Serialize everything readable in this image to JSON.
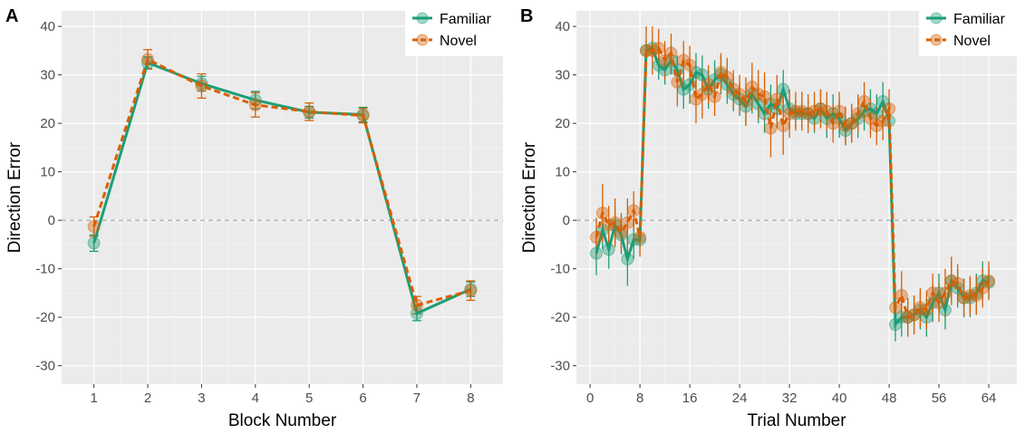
{
  "chart_data": [
    {
      "type": "line",
      "panel_label": "A",
      "x_label": "Block Number",
      "y_label": "Direction Error",
      "x": [
        1,
        2,
        3,
        4,
        5,
        6,
        7,
        8
      ],
      "xlim": [
        0.4,
        8.6
      ],
      "xticks": [
        1,
        2,
        3,
        4,
        5,
        6,
        7,
        8
      ],
      "ylim": [
        -33.8,
        43.2
      ],
      "yticks": [
        -30,
        -20,
        -10,
        0,
        10,
        20,
        30,
        40
      ],
      "grid": true,
      "hline": 0,
      "legend": "top-right",
      "error_caps": true,
      "series": [
        {
          "name": "Familiar",
          "color": "#1b9e77",
          "dash": false,
          "values": [
            -4.7,
            32.5,
            28.2,
            24.8,
            22.3,
            21.8,
            -19.2,
            -14.2
          ],
          "errors": [
            1.7,
            1.2,
            1.5,
            1.8,
            1.2,
            1.5,
            1.5,
            1.5
          ]
        },
        {
          "name": "Novel",
          "color": "#d95f02",
          "dash": true,
          "values": [
            -1.3,
            33.2,
            27.7,
            23.8,
            22.4,
            21.6,
            -17.5,
            -14.5
          ],
          "errors": [
            2.0,
            2.0,
            2.5,
            2.5,
            1.8,
            1.5,
            1.8,
            2.0
          ]
        }
      ]
    },
    {
      "type": "line",
      "panel_label": "B",
      "x_label": "Trial Number",
      "y_label": "Direction Error",
      "x": [
        1,
        2,
        3,
        4,
        5,
        6,
        7,
        8,
        9,
        10,
        11,
        12,
        13,
        14,
        15,
        16,
        17,
        18,
        19,
        20,
        21,
        22,
        23,
        24,
        25,
        26,
        27,
        28,
        29,
        30,
        31,
        32,
        33,
        34,
        35,
        36,
        37,
        38,
        39,
        40,
        41,
        42,
        43,
        44,
        45,
        46,
        47,
        48,
        49,
        50,
        51,
        52,
        53,
        54,
        55,
        56,
        57,
        58,
        59,
        60,
        61,
        62,
        63,
        64
      ],
      "xlim": [
        -2.2,
        68.5
      ],
      "xticks": [
        0,
        8,
        16,
        24,
        32,
        40,
        48,
        56,
        64
      ],
      "ylim": [
        -33.8,
        43.2
      ],
      "yticks": [
        -30,
        -20,
        -10,
        0,
        10,
        20,
        30,
        40
      ],
      "grid": true,
      "hline": 0,
      "legend": "top-right",
      "error_caps": false,
      "series": [
        {
          "name": "Familiar",
          "color": "#1b9e77",
          "dash": false,
          "values": [
            -6.8,
            -2,
            -6,
            -1,
            -3,
            -8,
            -4,
            -4,
            35,
            35.5,
            32,
            31,
            33,
            31,
            27,
            28,
            30.5,
            30,
            27,
            29,
            30,
            28,
            26,
            25,
            23.5,
            26,
            24,
            22,
            24,
            23,
            27,
            23,
            22,
            22,
            22,
            21,
            23,
            21,
            22,
            21,
            18.5,
            20,
            21,
            22.5,
            23,
            22,
            24.5,
            20.5,
            -21.5,
            -20,
            -20,
            -19.5,
            -18.5,
            -20,
            -17,
            -15,
            -18.5,
            -12.5,
            -14,
            -16,
            -16,
            -15,
            -12.5,
            -12.8
          ],
          "errors": [
            4.5,
            4,
            4,
            4,
            4,
            5.5,
            4,
            1.5,
            2,
            2,
            3,
            3,
            3,
            3,
            4,
            4,
            4,
            4,
            4,
            4,
            4,
            4,
            3.5,
            3.5,
            4,
            4,
            4,
            4,
            4,
            4,
            4,
            4,
            3,
            3,
            3,
            3,
            4,
            4,
            4,
            4,
            3,
            4,
            4,
            4,
            4,
            4,
            4,
            4,
            3.5,
            4,
            4,
            4,
            4,
            4,
            4,
            4,
            4,
            4,
            4,
            4,
            4,
            4,
            4,
            3
          ]
        },
        {
          "name": "Novel",
          "color": "#d95f02",
          "dash": true,
          "values": [
            -3.5,
            1.5,
            -1,
            -0.5,
            -2.5,
            -0.5,
            2,
            -3.5,
            35,
            35,
            35.5,
            33,
            34.5,
            28.5,
            33,
            32,
            25,
            26,
            28,
            25.5,
            30.5,
            29.5,
            27,
            26,
            24.5,
            27.5,
            26,
            25.5,
            19,
            25,
            19.5,
            22,
            22.5,
            22.5,
            22,
            22.5,
            23,
            22.5,
            20,
            22.5,
            19.5,
            20,
            22,
            24.5,
            21,
            19.5,
            20.5,
            23,
            -18,
            -15.5,
            -20,
            -19.5,
            -18,
            -18.5,
            -15,
            -17,
            -15,
            -12.5,
            -13,
            -16,
            -15.5,
            -15.5,
            -14,
            -12.5
          ],
          "errors": [
            4,
            6,
            4,
            5,
            4,
            5,
            4,
            4,
            5,
            5,
            4,
            4,
            4,
            5,
            4,
            4,
            5,
            5,
            4,
            4,
            4,
            4,
            4,
            4,
            5,
            5,
            5,
            5,
            6,
            5,
            6,
            5,
            4,
            4,
            4,
            4,
            4,
            4,
            4,
            4,
            4,
            4,
            4,
            4,
            4,
            4,
            4,
            4,
            4,
            5,
            4,
            4,
            4,
            4,
            4,
            4,
            5,
            5,
            4,
            4,
            4,
            4,
            4,
            4
          ]
        }
      ]
    }
  ]
}
